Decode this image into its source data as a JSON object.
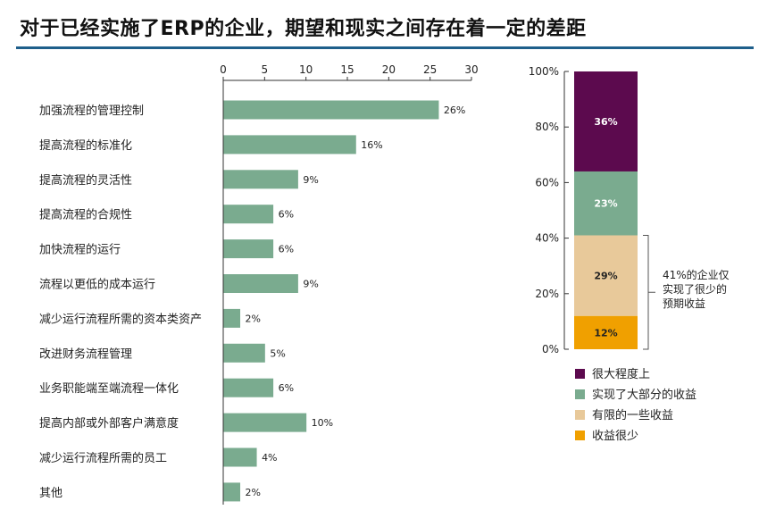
{
  "header": {
    "title": "对于已经实施了ERP的企业，期望和现实之间存在着一定的差距"
  },
  "chart_data": [
    {
      "type": "bar",
      "orientation": "horizontal",
      "categories": [
        "加强流程的管理控制",
        "提高流程的标准化",
        "提高流程的灵活性",
        "提高流程的合规性",
        "加快流程的运行",
        "流程以更低的成本运行",
        "减少运行流程所需的资本类资产",
        "改进财务流程管理",
        "业务职能端至端流程一体化",
        "提高内部或外部客户满意度",
        "减少运行流程所需的员工",
        "其他"
      ],
      "values": [
        26,
        16,
        9,
        6,
        6,
        9,
        2,
        5,
        6,
        10,
        4,
        2
      ],
      "value_labels": [
        "26%",
        "16%",
        "9%",
        "6%",
        "6%",
        "9%",
        "2%",
        "5%",
        "6%",
        "10%",
        "4%",
        "2%"
      ],
      "xticks": [
        "0",
        "5",
        "10",
        "15",
        "20",
        "25",
        "30"
      ],
      "xlim": [
        0,
        30
      ],
      "bar_color": "#7aab8f",
      "axis_position": "top"
    },
    {
      "type": "bar",
      "stacked": true,
      "yticks": [
        "0%",
        "20%",
        "40%",
        "60%",
        "80%",
        "100%"
      ],
      "ylim": [
        0,
        100
      ],
      "series": [
        {
          "name": "收益很少",
          "value": 12,
          "label": "12%",
          "color": "#f0a000",
          "label_color": "#222222"
        },
        {
          "name": "有限的一些收益",
          "value": 29,
          "label": "29%",
          "color": "#e8c99a",
          "label_color": "#222222"
        },
        {
          "name": "实现了大部分的收益",
          "value": 23,
          "label": "23%",
          "color": "#7aab8f",
          "label_color": "#ffffff"
        },
        {
          "name": "很大程度上",
          "value": 36,
          "label": "36%",
          "color": "#5c0a4e",
          "label_color": "#ffffff"
        }
      ],
      "legend": {
        "placement": "bottom",
        "items": [
          {
            "label": "很大程度上",
            "color": "#5c0a4e"
          },
          {
            "label": "实现了大部分的收益",
            "color": "#7aab8f"
          },
          {
            "label": "有限的一些收益",
            "color": "#e8c99a"
          },
          {
            "label": "收益很少",
            "color": "#f0a000"
          }
        ]
      },
      "annotation": {
        "lines": [
          "41%的企业仅",
          "实现了很少的",
          "预期收益"
        ],
        "spans": [
          0,
          41
        ]
      }
    }
  ]
}
